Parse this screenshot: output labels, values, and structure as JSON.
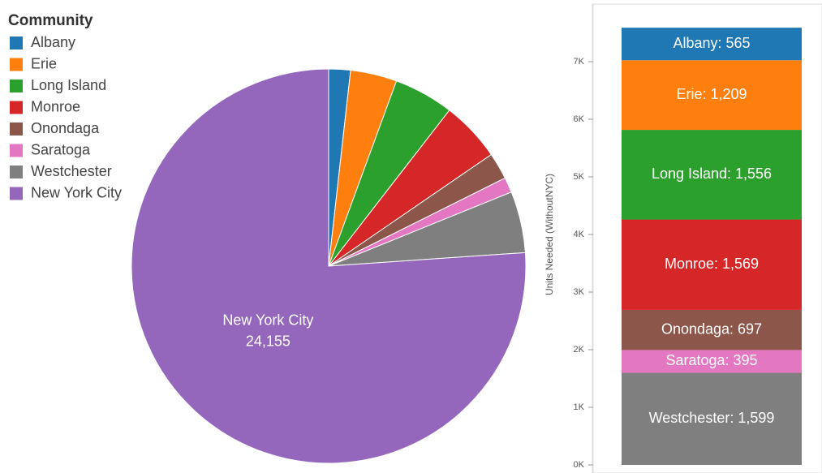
{
  "chart_data": [
    {
      "type": "pie",
      "legend_title": "Community",
      "legend": "top-left",
      "categories": [
        "Albany",
        "Erie",
        "Long Island",
        "Monroe",
        "Onondaga",
        "Saratoga",
        "Westchester",
        "New York City"
      ],
      "values": [
        565,
        1209,
        1556,
        1569,
        697,
        395,
        1599,
        24155
      ],
      "value_labels": [
        null,
        null,
        null,
        null,
        null,
        null,
        null,
        "24,155"
      ],
      "colors": [
        "#1f77b4",
        "#ff7f0e",
        "#2ca02c",
        "#d62728",
        "#8c564b",
        "#e377c2",
        "#7f7f7f",
        "#9467bd"
      ]
    },
    {
      "type": "stacked_bar",
      "ylabel": "Units Needed (WithoutNYC)",
      "ylim": [
        0,
        8000
      ],
      "yticks": [
        {
          "value": 0,
          "label": "0K"
        },
        {
          "value": 1000,
          "label": "1K"
        },
        {
          "value": 2000,
          "label": "2K"
        },
        {
          "value": 3000,
          "label": "3K"
        },
        {
          "value": 4000,
          "label": "4K"
        },
        {
          "value": 5000,
          "label": "5K"
        },
        {
          "value": 6000,
          "label": "6K"
        },
        {
          "value": 7000,
          "label": "7K"
        }
      ],
      "series": [
        {
          "name": "Westchester",
          "color": "#7f7f7f",
          "values": [
            1599
          ],
          "value_labels": [
            "Westchester: 1,599"
          ]
        },
        {
          "name": "Saratoga",
          "color": "#e377c2",
          "values": [
            395
          ],
          "value_labels": [
            "Saratoga: 395"
          ]
        },
        {
          "name": "Onondaga",
          "color": "#8c564b",
          "values": [
            697
          ],
          "value_labels": [
            "Onondaga: 697"
          ]
        },
        {
          "name": "Monroe",
          "color": "#d62728",
          "values": [
            1569
          ],
          "value_labels": [
            "Monroe: 1,569"
          ]
        },
        {
          "name": "Long Island",
          "color": "#2ca02c",
          "values": [
            1556
          ],
          "value_labels": [
            "Long Island: 1,556"
          ]
        },
        {
          "name": "Erie",
          "color": "#ff7f0e",
          "values": [
            1209
          ],
          "value_labels": [
            "Erie: 1,209"
          ]
        },
        {
          "name": "Albany",
          "color": "#1f77b4",
          "values": [
            565
          ],
          "value_labels": [
            "Albany: 565"
          ]
        }
      ]
    }
  ]
}
